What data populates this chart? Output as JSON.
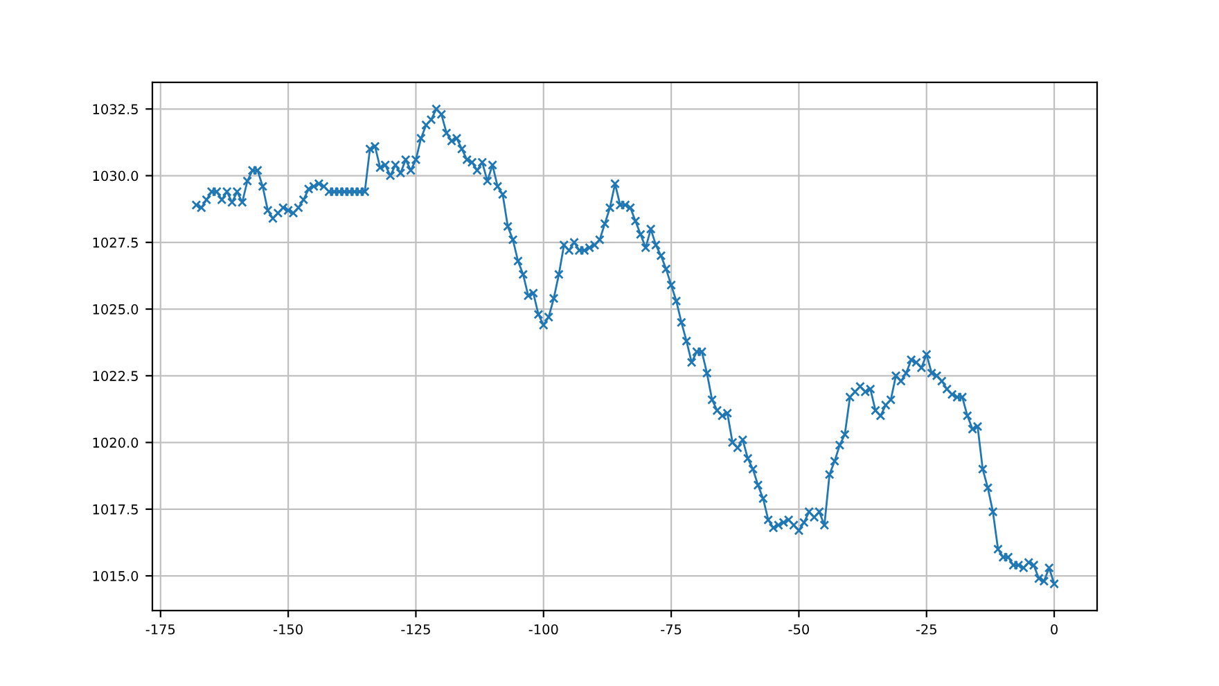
{
  "chart_data": {
    "type": "line",
    "marker": "cross",
    "grid": true,
    "xlim": [
      -176.6,
      8.4
    ],
    "ylim": [
      1013.7,
      1033.5
    ],
    "xticks": [
      -175,
      -150,
      -125,
      -100,
      -75,
      -50,
      -25,
      0
    ],
    "yticks": [
      {
        "value": 1015,
        "label": "1015.0"
      },
      {
        "value": 1017.5,
        "label": "1017.5"
      },
      {
        "value": 1020,
        "label": "1020.0"
      },
      {
        "value": 1022.5,
        "label": "1022.5"
      },
      {
        "value": 1025,
        "label": "1025.0"
      },
      {
        "value": 1027.5,
        "label": "1027.5"
      },
      {
        "value": 1030,
        "label": "1030.0"
      },
      {
        "value": 1032.5,
        "label": "1032.5"
      }
    ],
    "x": [
      -168,
      -167,
      -166,
      -165,
      -164,
      -163,
      -162,
      -161,
      -160,
      -159,
      -158,
      -157,
      -156,
      -155,
      -154,
      -153,
      -152,
      -151,
      -150,
      -149,
      -148,
      -147,
      -146,
      -145,
      -144,
      -143,
      -142,
      -141,
      -140,
      -139,
      -138,
      -137,
      -136,
      -135,
      -134,
      -133,
      -132,
      -131,
      -130,
      -129,
      -128,
      -127,
      -126,
      -125,
      -124,
      -123,
      -122,
      -121,
      -120,
      -119,
      -118,
      -117,
      -116,
      -115,
      -114,
      -113,
      -112,
      -111,
      -110,
      -109,
      -108,
      -107,
      -106,
      -105,
      -104,
      -103,
      -102,
      -101,
      -100,
      -99,
      -98,
      -97,
      -96,
      -95,
      -94,
      -93,
      -92,
      -91,
      -90,
      -89,
      -88,
      -87,
      -86,
      -85,
      -84,
      -83,
      -82,
      -81,
      -80,
      -79,
      -78,
      -77,
      -76,
      -75,
      -74,
      -73,
      -72,
      -71,
      -70,
      -69,
      -68,
      -67,
      -66,
      -65,
      -64,
      -63,
      -62,
      -61,
      -60,
      -59,
      -58,
      -57,
      -56,
      -55,
      -54,
      -53,
      -52,
      -51,
      -50,
      -49,
      -48,
      -47,
      -46,
      -45,
      -44,
      -43,
      -42,
      -41,
      -40,
      -39,
      -38,
      -37,
      -36,
      -35,
      -34,
      -33,
      -32,
      -31,
      -30,
      -29,
      -28,
      -27,
      -26,
      -25,
      -24,
      -23,
      -22,
      -21,
      -20,
      -19,
      -18,
      -17,
      -16,
      -15,
      -14,
      -13,
      -12,
      -11,
      -10,
      -9,
      -8,
      -7,
      -6,
      -5,
      -4,
      -3,
      -2,
      -1,
      0
    ],
    "series": [
      {
        "color": "#1f77b4",
        "values": [
          1028.9,
          1028.8,
          1029.1,
          1029.4,
          1029.4,
          1029.1,
          1029.4,
          1029.0,
          1029.4,
          1029.0,
          1029.8,
          1030.2,
          1030.2,
          1029.6,
          1028.7,
          1028.4,
          1028.6,
          1028.8,
          1028.7,
          1028.6,
          1028.8,
          1029.1,
          1029.5,
          1029.6,
          1029.7,
          1029.6,
          1029.4,
          1029.4,
          1029.4,
          1029.4,
          1029.4,
          1029.4,
          1029.4,
          1029.4,
          1031.0,
          1031.1,
          1030.3,
          1030.4,
          1030.0,
          1030.4,
          1030.1,
          1030.6,
          1030.2,
          1030.6,
          1031.4,
          1031.9,
          1032.1,
          1032.5,
          1032.3,
          1031.6,
          1031.3,
          1031.4,
          1031.0,
          1030.6,
          1030.5,
          1030.2,
          1030.5,
          1029.8,
          1030.4,
          1029.6,
          1029.3,
          1028.1,
          1027.6,
          1026.8,
          1026.3,
          1025.5,
          1025.6,
          1024.8,
          1024.4,
          1024.7,
          1025.4,
          1026.3,
          1027.4,
          1027.2,
          1027.5,
          1027.2,
          1027.2,
          1027.3,
          1027.4,
          1027.6,
          1028.2,
          1028.8,
          1029.7,
          1028.9,
          1028.9,
          1028.8,
          1028.3,
          1027.8,
          1027.3,
          1028.0,
          1027.4,
          1027.0,
          1026.5,
          1025.9,
          1025.3,
          1024.5,
          1023.8,
          1023.0,
          1023.4,
          1023.4,
          1022.6,
          1021.6,
          1021.2,
          1021.0,
          1021.1,
          1020.0,
          1019.8,
          1020.1,
          1019.4,
          1019.0,
          1018.4,
          1017.9,
          1017.1,
          1016.8,
          1016.9,
          1017.0,
          1017.1,
          1016.9,
          1016.7,
          1017.0,
          1017.4,
          1017.2,
          1017.4,
          1016.9,
          1018.8,
          1019.3,
          1019.9,
          1020.3,
          1021.7,
          1021.9,
          1022.1,
          1021.9,
          1022.0,
          1021.2,
          1021.0,
          1021.4,
          1021.6,
          1022.5,
          1022.3,
          1022.6,
          1023.1,
          1023.0,
          1022.8,
          1023.3,
          1022.6,
          1022.5,
          1022.3,
          1022.0,
          1021.8,
          1021.7,
          1021.7,
          1021.0,
          1020.5,
          1020.6,
          1019.0,
          1018.3,
          1017.4,
          1016.0,
          1015.7,
          1015.7,
          1015.4,
          1015.4,
          1015.3,
          1015.5,
          1015.4,
          1014.9,
          1014.8,
          1015.3,
          1014.7
        ]
      }
    ]
  }
}
